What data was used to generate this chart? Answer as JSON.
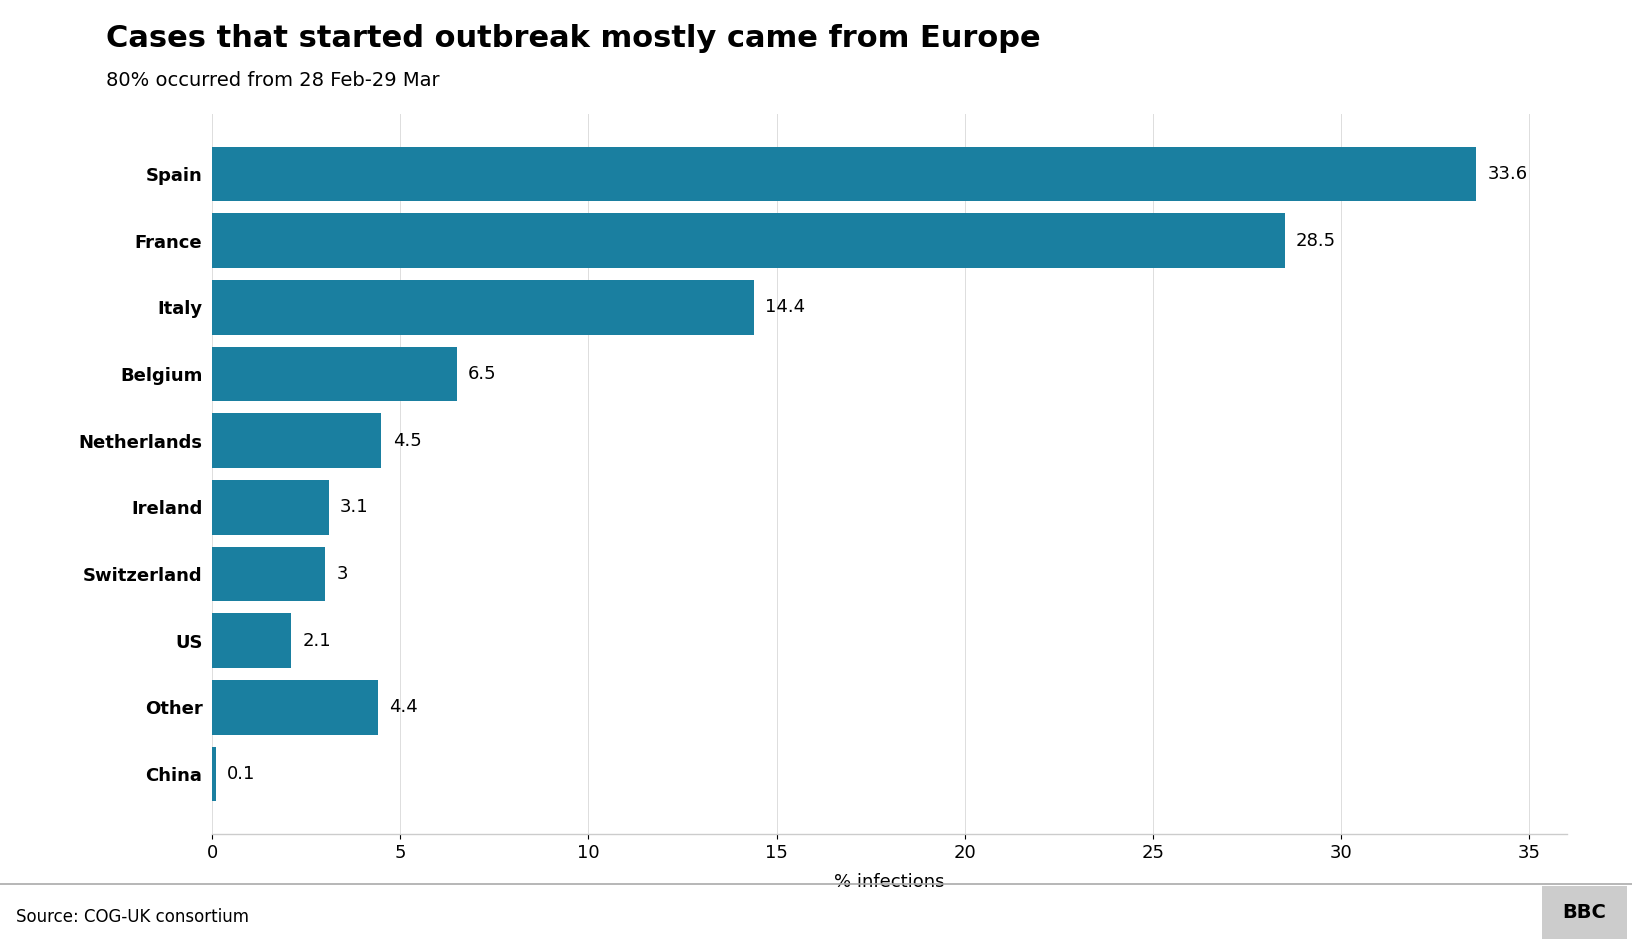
{
  "title": "Cases that started outbreak mostly came from Europe",
  "subtitle": "80% occurred from 28 Feb-29 Mar",
  "categories": [
    "Spain",
    "France",
    "Italy",
    "Belgium",
    "Netherlands",
    "Ireland",
    "Switzerland",
    "US",
    "Other",
    "China"
  ],
  "values": [
    33.6,
    28.5,
    14.4,
    6.5,
    4.5,
    3.1,
    3.0,
    2.1,
    4.4,
    0.1
  ],
  "bar_color": "#1a7fa0",
  "xlabel": "% infections",
  "xlim": [
    0,
    36
  ],
  "xticks": [
    0,
    5,
    10,
    15,
    20,
    25,
    30,
    35
  ],
  "source": "Source: COG-UK consortium",
  "bbc_label": "BBC",
  "title_fontsize": 22,
  "subtitle_fontsize": 14,
  "label_fontsize": 13,
  "tick_fontsize": 13,
  "source_fontsize": 12,
  "background_color": "#ffffff"
}
